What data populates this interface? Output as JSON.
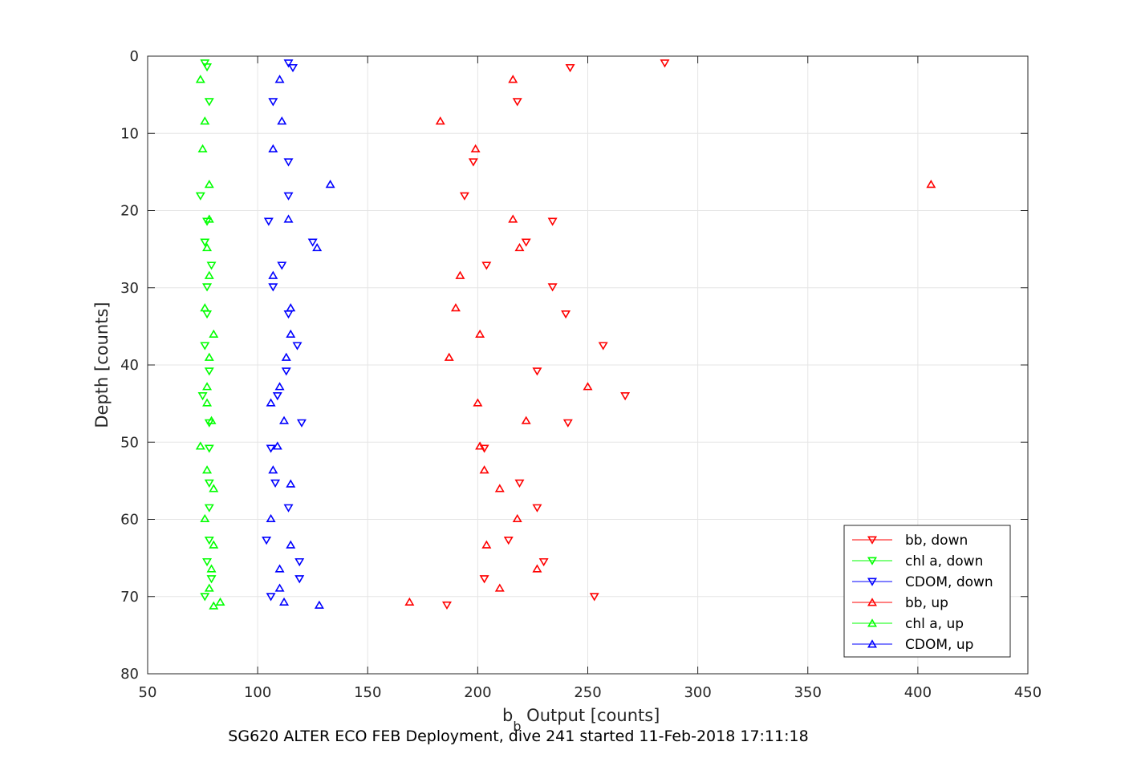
{
  "chart_data": {
    "type": "scatter",
    "title": "",
    "caption": "SG620 ALTER ECO FEB Deployment, dive 241 started 11-Feb-2018 17:11:18",
    "xlabel_main": "b",
    "xlabel_sub": "b",
    "xlabel_rest": " Output [counts]",
    "ylabel": "Depth [counts]",
    "xlim": [
      50,
      450
    ],
    "ylim": [
      0,
      80
    ],
    "y_reversed": true,
    "grid": true,
    "xticks": [
      "50",
      "100",
      "150",
      "200",
      "250",
      "300",
      "350",
      "400",
      "450"
    ],
    "yticks": [
      "0",
      "10",
      "20",
      "30",
      "40",
      "50",
      "60",
      "70",
      "80"
    ],
    "legend_position": "bottom-right",
    "series": [
      {
        "name": "bb, down",
        "color": "#ff0000",
        "marker": "triangle-down",
        "points": [
          [
            285,
            0.9
          ],
          [
            242,
            1.5
          ],
          [
            218,
            5.9
          ],
          [
            198,
            13.7
          ],
          [
            194,
            18.1
          ],
          [
            234,
            21.4
          ],
          [
            222,
            24.1
          ],
          [
            204,
            27.1
          ],
          [
            234,
            29.9
          ],
          [
            240,
            33.4
          ],
          [
            257,
            37.5
          ],
          [
            227,
            40.8
          ],
          [
            267,
            44.0
          ],
          [
            241,
            47.5
          ],
          [
            203,
            50.8
          ],
          [
            219,
            55.3
          ],
          [
            227,
            58.5
          ],
          [
            214,
            62.7
          ],
          [
            230,
            65.5
          ],
          [
            203,
            67.7
          ],
          [
            253,
            70.0
          ],
          [
            186,
            71.1
          ]
        ]
      },
      {
        "name": "chl a, down",
        "color": "#00ff00",
        "marker": "triangle-down",
        "points": [
          [
            76,
            0.9
          ],
          [
            77,
            1.4
          ],
          [
            78,
            5.9
          ],
          [
            74,
            18.1
          ],
          [
            77,
            21.4
          ],
          [
            76,
            24.1
          ],
          [
            79,
            27.1
          ],
          [
            77,
            29.9
          ],
          [
            77,
            33.4
          ],
          [
            76,
            37.5
          ],
          [
            78,
            40.8
          ],
          [
            75,
            44.0
          ],
          [
            78,
            47.5
          ],
          [
            78,
            50.8
          ],
          [
            78,
            55.3
          ],
          [
            78,
            58.5
          ],
          [
            78,
            62.7
          ],
          [
            77,
            65.5
          ],
          [
            79,
            67.7
          ],
          [
            76,
            70.0
          ]
        ]
      },
      {
        "name": "CDOM, down",
        "color": "#0000ff",
        "marker": "triangle-down",
        "points": [
          [
            114,
            0.9
          ],
          [
            116,
            1.5
          ],
          [
            107,
            5.9
          ],
          [
            114,
            13.7
          ],
          [
            114,
            18.1
          ],
          [
            105,
            21.4
          ],
          [
            125,
            24.1
          ],
          [
            111,
            27.1
          ],
          [
            107,
            29.9
          ],
          [
            114,
            33.4
          ],
          [
            118,
            37.5
          ],
          [
            113,
            40.8
          ],
          [
            109,
            44.0
          ],
          [
            120,
            47.5
          ],
          [
            106,
            50.8
          ],
          [
            108,
            55.3
          ],
          [
            114,
            58.5
          ],
          [
            104,
            62.7
          ],
          [
            119,
            65.5
          ],
          [
            119,
            67.7
          ],
          [
            106,
            70.0
          ]
        ]
      },
      {
        "name": "bb, up",
        "color": "#ff0000",
        "marker": "triangle-up",
        "points": [
          [
            216,
            3.0
          ],
          [
            183,
            8.4
          ],
          [
            199,
            12.0
          ],
          [
            406,
            16.6
          ],
          [
            216,
            21.1
          ],
          [
            219,
            24.8
          ],
          [
            192,
            28.4
          ],
          [
            190,
            32.6
          ],
          [
            201,
            36.0
          ],
          [
            187,
            39.0
          ],
          [
            250,
            42.8
          ],
          [
            200,
            44.9
          ],
          [
            222,
            47.2
          ],
          [
            201,
            50.5
          ],
          [
            203,
            53.6
          ],
          [
            210,
            56.0
          ],
          [
            218,
            59.9
          ],
          [
            204,
            63.3
          ],
          [
            227,
            66.4
          ],
          [
            210,
            68.9
          ],
          [
            169,
            70.7
          ]
        ]
      },
      {
        "name": "chl a, up",
        "color": "#00ff00",
        "marker": "triangle-up",
        "points": [
          [
            74,
            3.0
          ],
          [
            76,
            8.4
          ],
          [
            75,
            12.0
          ],
          [
            78,
            16.6
          ],
          [
            78,
            21.1
          ],
          [
            77,
            24.8
          ],
          [
            78,
            28.4
          ],
          [
            76,
            32.6
          ],
          [
            80,
            36.0
          ],
          [
            78,
            39.0
          ],
          [
            77,
            42.8
          ],
          [
            77,
            44.9
          ],
          [
            79,
            47.2
          ],
          [
            74,
            50.5
          ],
          [
            77,
            53.6
          ],
          [
            80,
            56.0
          ],
          [
            76,
            59.9
          ],
          [
            80,
            63.3
          ],
          [
            79,
            66.4
          ],
          [
            78,
            68.9
          ],
          [
            83,
            70.7
          ],
          [
            80,
            71.2
          ]
        ]
      },
      {
        "name": "CDOM, up",
        "color": "#0000ff",
        "marker": "triangle-up",
        "points": [
          [
            110,
            3.0
          ],
          [
            111,
            8.4
          ],
          [
            107,
            12.0
          ],
          [
            133,
            16.6
          ],
          [
            114,
            21.1
          ],
          [
            127,
            24.8
          ],
          [
            107,
            28.4
          ],
          [
            115,
            32.6
          ],
          [
            115,
            36.0
          ],
          [
            113,
            39.0
          ],
          [
            110,
            42.8
          ],
          [
            106,
            44.9
          ],
          [
            112,
            47.2
          ],
          [
            109,
            50.5
          ],
          [
            107,
            53.6
          ],
          [
            115,
            55.4
          ],
          [
            106,
            59.9
          ],
          [
            115,
            63.3
          ],
          [
            110,
            66.4
          ],
          [
            110,
            68.9
          ],
          [
            112,
            70.7
          ],
          [
            128,
            71.1
          ]
        ]
      }
    ]
  }
}
